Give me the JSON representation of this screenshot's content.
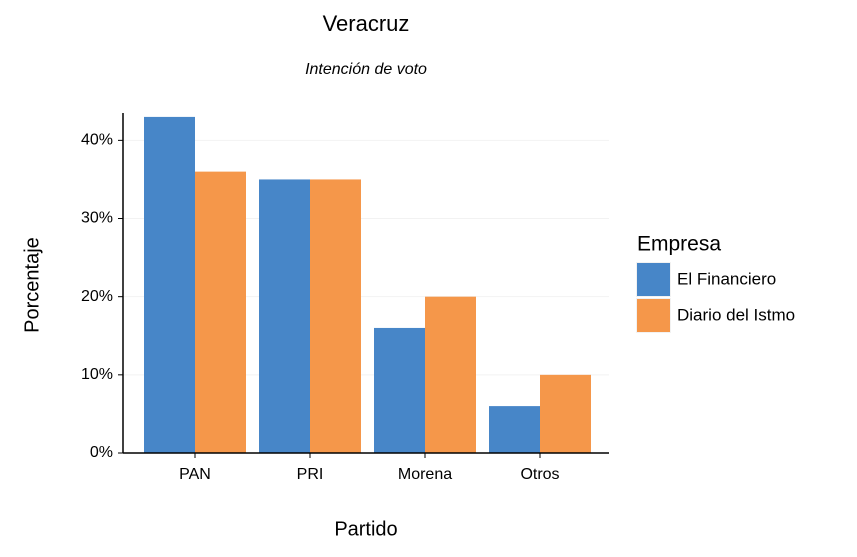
{
  "chart_data": {
    "type": "bar",
    "title": "Veracruz",
    "subtitle": "Intención de voto",
    "x_label": "Partido",
    "y_label": "Porcentaje",
    "categories": [
      "PAN",
      "PRI",
      "Morena",
      "Otros"
    ],
    "series": [
      {
        "name": "El Financiero",
        "color": "#4786c8",
        "values": [
          43,
          35,
          16,
          6
        ]
      },
      {
        "name": "Diario del Istmo",
        "color": "#f5974a",
        "values": [
          36,
          35,
          20,
          10
        ]
      }
    ],
    "legend_title": "Empresa",
    "legend": "right",
    "ylim": [
      0,
      43.5
    ],
    "yticks": [
      {
        "value": 0,
        "label": "0%"
      },
      {
        "value": 10,
        "label": "10%"
      },
      {
        "value": 20,
        "label": "20%"
      },
      {
        "value": 30,
        "label": "30%"
      },
      {
        "value": 40,
        "label": "40%"
      }
    ],
    "grid": true
  }
}
